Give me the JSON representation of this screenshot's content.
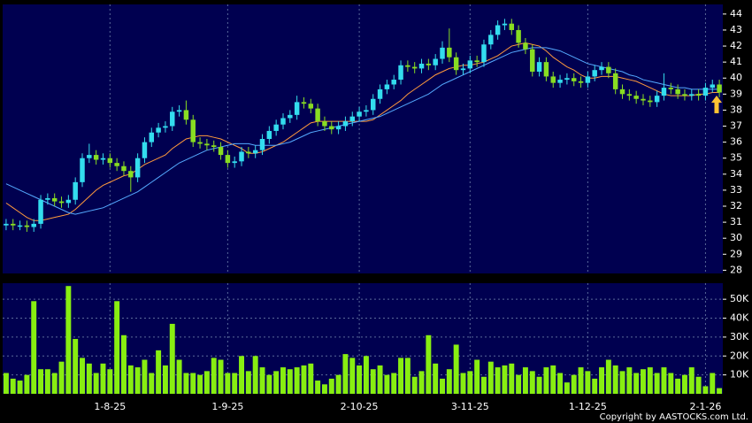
{
  "chart_data": {
    "type": "candlestick",
    "categories": [
      null,
      null,
      null,
      null,
      null,
      null,
      null,
      null,
      null,
      null,
      null,
      null,
      null,
      null,
      null,
      "1-8-25",
      null,
      null,
      null,
      null,
      null,
      null,
      null,
      null,
      null,
      null,
      null,
      null,
      null,
      null,
      null,
      null,
      "1-9-25",
      null,
      null,
      null,
      null,
      null,
      null,
      null,
      null,
      null,
      null,
      null,
      null,
      null,
      null,
      null,
      null,
      null,
      null,
      "2-10-25",
      null,
      null,
      null,
      null,
      null,
      null,
      null,
      null,
      null,
      null,
      null,
      null,
      null,
      null,
      null,
      "3-11-25",
      null,
      null,
      null,
      null,
      null,
      null,
      null,
      null,
      null,
      null,
      null,
      null,
      null,
      null,
      null,
      null,
      "1-12-25",
      null,
      null,
      null,
      null,
      null,
      null,
      null,
      null,
      null,
      null,
      null,
      null,
      null,
      null,
      null,
      null,
      "2-1-26",
      null,
      null
    ],
    "open": [
      30.8,
      30.9,
      30.8,
      30.8,
      30.7,
      30.9,
      32.4,
      32.5,
      32.3,
      32.2,
      32.4,
      33.5,
      35.0,
      35.2,
      34.9,
      35.0,
      34.7,
      34.5,
      34.2,
      33.8,
      35.0,
      36.0,
      36.6,
      36.9,
      37.0,
      37.9,
      38.0,
      37.4,
      36.0,
      35.9,
      35.8,
      35.7,
      35.2,
      34.7,
      34.8,
      35.4,
      35.3,
      35.5,
      36.2,
      36.7,
      37.1,
      37.5,
      37.7,
      38.5,
      38.4,
      38.1,
      37.3,
      37.0,
      36.8,
      37.0,
      37.3,
      37.6,
      37.9,
      38.0,
      38.7,
      39.3,
      39.6,
      39.9,
      40.8,
      40.7,
      40.6,
      40.9,
      40.8,
      41.2,
      41.9,
      41.3,
      40.5,
      40.6,
      41.1,
      41.0,
      42.1,
      42.7,
      43.3,
      43.4,
      43.0,
      42.2,
      41.8,
      40.4,
      41.0,
      40.1,
      39.7,
      39.9,
      40.0,
      39.8,
      39.7,
      40.1,
      40.5,
      40.7,
      40.3,
      39.3,
      39.0,
      38.9,
      38.7,
      38.6,
      38.5,
      38.9,
      39.4,
      39.3,
      39.0,
      38.9,
      39.0,
      38.9,
      39.4,
      39.6
    ],
    "high": [
      31.2,
      31.2,
      31.1,
      31.1,
      31.2,
      32.7,
      32.8,
      32.8,
      32.6,
      32.7,
      33.8,
      35.3,
      35.9,
      35.5,
      35.3,
      35.3,
      35.0,
      34.8,
      34.5,
      35.3,
      36.3,
      36.9,
      37.2,
      37.3,
      38.2,
      38.3,
      38.6,
      37.7,
      36.3,
      36.2,
      36.1,
      36.0,
      35.5,
      35.1,
      35.7,
      35.7,
      35.8,
      36.5,
      37.0,
      37.4,
      37.8,
      38.0,
      38.9,
      38.8,
      38.7,
      38.4,
      37.6,
      37.3,
      37.3,
      37.6,
      37.9,
      38.2,
      38.3,
      39.0,
      39.6,
      39.9,
      40.2,
      41.1,
      41.1,
      41.0,
      41.2,
      41.2,
      41.5,
      42.3,
      43.1,
      41.6,
      40.9,
      41.4,
      41.4,
      42.4,
      43.0,
      43.6,
      43.7,
      43.7,
      43.3,
      42.5,
      42.1,
      41.3,
      41.3,
      40.4,
      40.2,
      40.3,
      40.3,
      40.1,
      40.4,
      40.8,
      41.0,
      41.0,
      40.6,
      39.6,
      39.3,
      39.2,
      39.0,
      38.9,
      39.2,
      40.3,
      39.7,
      39.6,
      39.3,
      39.3,
      39.3,
      39.7,
      39.9,
      39.9
    ],
    "low": [
      30.5,
      30.5,
      30.5,
      30.4,
      30.4,
      30.6,
      32.1,
      32.0,
      31.9,
      31.9,
      32.1,
      33.2,
      34.7,
      34.6,
      34.6,
      34.4,
      34.2,
      33.9,
      32.9,
      33.5,
      34.7,
      35.7,
      36.3,
      36.6,
      36.7,
      37.6,
      37.1,
      35.7,
      35.6,
      35.5,
      35.4,
      34.9,
      34.4,
      34.4,
      34.5,
      35.0,
      35.0,
      35.2,
      35.9,
      36.4,
      36.8,
      37.2,
      37.4,
      38.1,
      37.8,
      37.0,
      36.7,
      36.5,
      36.5,
      36.7,
      37.0,
      37.3,
      37.6,
      37.7,
      38.4,
      39.0,
      39.3,
      39.6,
      40.4,
      40.3,
      40.3,
      40.5,
      40.5,
      40.9,
      41.0,
      40.2,
      40.2,
      40.3,
      40.7,
      40.7,
      41.8,
      42.4,
      43.0,
      42.7,
      41.9,
      41.5,
      40.1,
      40.1,
      39.8,
      39.4,
      39.4,
      39.6,
      39.5,
      39.4,
      39.4,
      39.8,
      40.2,
      40.0,
      39.0,
      38.7,
      38.6,
      38.4,
      38.3,
      38.2,
      38.2,
      38.6,
      39.0,
      38.7,
      38.6,
      38.6,
      38.6,
      38.6,
      39.1,
      38.8
    ],
    "close": [
      30.9,
      30.8,
      30.8,
      30.7,
      30.9,
      32.4,
      32.5,
      32.3,
      32.2,
      32.4,
      33.5,
      35.0,
      35.2,
      34.9,
      35.0,
      34.7,
      34.5,
      34.2,
      33.8,
      35.0,
      36.0,
      36.6,
      36.9,
      37.0,
      37.9,
      38.0,
      37.4,
      36.0,
      35.9,
      35.8,
      35.7,
      35.2,
      34.7,
      34.8,
      35.4,
      35.3,
      35.5,
      36.2,
      36.7,
      37.1,
      37.5,
      37.7,
      38.5,
      38.4,
      38.1,
      37.3,
      37.0,
      36.8,
      37.0,
      37.3,
      37.6,
      37.9,
      38.0,
      38.7,
      39.3,
      39.6,
      39.9,
      40.8,
      40.7,
      40.6,
      40.9,
      40.8,
      41.2,
      41.9,
      41.3,
      40.5,
      40.6,
      41.1,
      41.0,
      42.1,
      42.7,
      43.3,
      43.4,
      43.0,
      42.2,
      41.8,
      40.4,
      41.0,
      40.1,
      39.7,
      39.9,
      40.0,
      39.8,
      39.7,
      40.1,
      40.5,
      40.7,
      40.3,
      39.3,
      39.0,
      38.9,
      38.7,
      38.6,
      38.5,
      38.9,
      39.4,
      39.3,
      39.0,
      38.9,
      39.0,
      38.9,
      39.4,
      39.6,
      39.1
    ],
    "up_color": "#33ddee",
    "down_color": "#88dd22",
    "moving_averages": [
      {
        "color": "#ff9a3c",
        "values": [
          32.2,
          31.9,
          31.6,
          31.3,
          31.1,
          31.1,
          31.2,
          31.3,
          31.4,
          31.5,
          31.8,
          32.2,
          32.6,
          33.0,
          33.3,
          33.5,
          33.7,
          33.9,
          34.0,
          34.3,
          34.6,
          34.8,
          35.0,
          35.2,
          35.6,
          35.9,
          36.2,
          36.3,
          36.4,
          36.4,
          36.3,
          36.2,
          36.0,
          35.8,
          35.6,
          35.3,
          35.3,
          35.4,
          35.6,
          35.8,
          36.0,
          36.3,
          36.6,
          36.9,
          37.2,
          37.3,
          37.3,
          37.3,
          37.3,
          37.3,
          37.3,
          37.3,
          37.3,
          37.4,
          37.7,
          38.0,
          38.3,
          38.6,
          39.0,
          39.3,
          39.6,
          39.9,
          40.2,
          40.4,
          40.6,
          40.7,
          40.8,
          40.8,
          40.9,
          41.0,
          41.2,
          41.4,
          41.7,
          42.0,
          42.1,
          42.2,
          42.1,
          42.0,
          41.7,
          41.3,
          41.0,
          40.7,
          40.5,
          40.2,
          40.0,
          40.0,
          40.1,
          40.1,
          40.1,
          40.0,
          39.9,
          39.8,
          39.6,
          39.4,
          39.2,
          39.0,
          38.9,
          38.9,
          38.9,
          38.9,
          39.0,
          39.0,
          39.1,
          39.1
        ]
      },
      {
        "color": "#55aaff",
        "values": [
          33.4,
          33.2,
          33.0,
          32.8,
          32.6,
          32.4,
          32.2,
          32.0,
          31.8,
          31.6,
          31.5,
          31.6,
          31.7,
          31.8,
          31.9,
          32.1,
          32.3,
          32.5,
          32.7,
          32.9,
          33.2,
          33.5,
          33.8,
          34.1,
          34.4,
          34.7,
          34.9,
          35.1,
          35.3,
          35.5,
          35.6,
          35.7,
          35.8,
          35.9,
          35.9,
          35.9,
          35.8,
          35.8,
          35.8,
          35.8,
          35.9,
          36.0,
          36.2,
          36.4,
          36.6,
          36.7,
          36.8,
          36.9,
          37.0,
          37.1,
          37.2,
          37.3,
          37.4,
          37.5,
          37.6,
          37.8,
          38.0,
          38.2,
          38.4,
          38.6,
          38.8,
          39.0,
          39.3,
          39.6,
          39.8,
          40.0,
          40.2,
          40.4,
          40.6,
          40.8,
          41.0,
          41.2,
          41.4,
          41.6,
          41.7,
          41.8,
          41.9,
          41.9,
          41.9,
          41.8,
          41.7,
          41.5,
          41.3,
          41.1,
          40.9,
          40.8,
          40.7,
          40.6,
          40.5,
          40.4,
          40.2,
          40.1,
          39.9,
          39.8,
          39.7,
          39.6,
          39.5,
          39.4,
          39.4,
          39.3,
          39.3,
          39.3,
          39.3,
          39.3
        ]
      }
    ],
    "ylim": [
      27.8,
      44.6
    ],
    "yticks": [
      28,
      29,
      30,
      31,
      32,
      33,
      34,
      35,
      36,
      37,
      38,
      39,
      40,
      41,
      42,
      43,
      44
    ],
    "grid": true,
    "volume": {
      "type": "bar",
      "color": "#88ee11",
      "values": [
        11000,
        8000,
        7000,
        10000,
        49000,
        13000,
        13000,
        11000,
        17000,
        57000,
        29000,
        19000,
        16000,
        11000,
        16000,
        13000,
        49000,
        31000,
        15000,
        14000,
        18000,
        11000,
        23000,
        15000,
        37000,
        18000,
        11000,
        11000,
        10000,
        12000,
        19000,
        18000,
        11000,
        11000,
        20000,
        12000,
        20000,
        14000,
        10000,
        12000,
        14000,
        13000,
        14000,
        15000,
        16000,
        7000,
        5000,
        8000,
        10000,
        21000,
        19000,
        15000,
        20000,
        13000,
        15000,
        10000,
        11000,
        19000,
        19000,
        9000,
        12000,
        31000,
        16000,
        8000,
        13000,
        26000,
        11000,
        12000,
        18000,
        9000,
        17000,
        14000,
        15000,
        16000,
        10000,
        14000,
        12000,
        9000,
        14000,
        15000,
        11000,
        6000,
        10000,
        14000,
        12000,
        8000,
        14000,
        18000,
        15000,
        12000,
        14000,
        11000,
        13000,
        14000,
        11000,
        14000,
        11000,
        8000,
        10000,
        14000,
        9000,
        4000,
        11000,
        3000
      ],
      "ylim": [
        0,
        58500
      ],
      "yticks": [
        {
          "value": 10000,
          "label": "10K"
        },
        {
          "value": 20000,
          "label": "20K"
        },
        {
          "value": 30000,
          "label": "30K"
        },
        {
          "value": 40000,
          "label": "40K"
        },
        {
          "value": 50000,
          "label": "50K"
        }
      ]
    },
    "copyright": "Copyright by AASTOCKS.com Ltd."
  }
}
